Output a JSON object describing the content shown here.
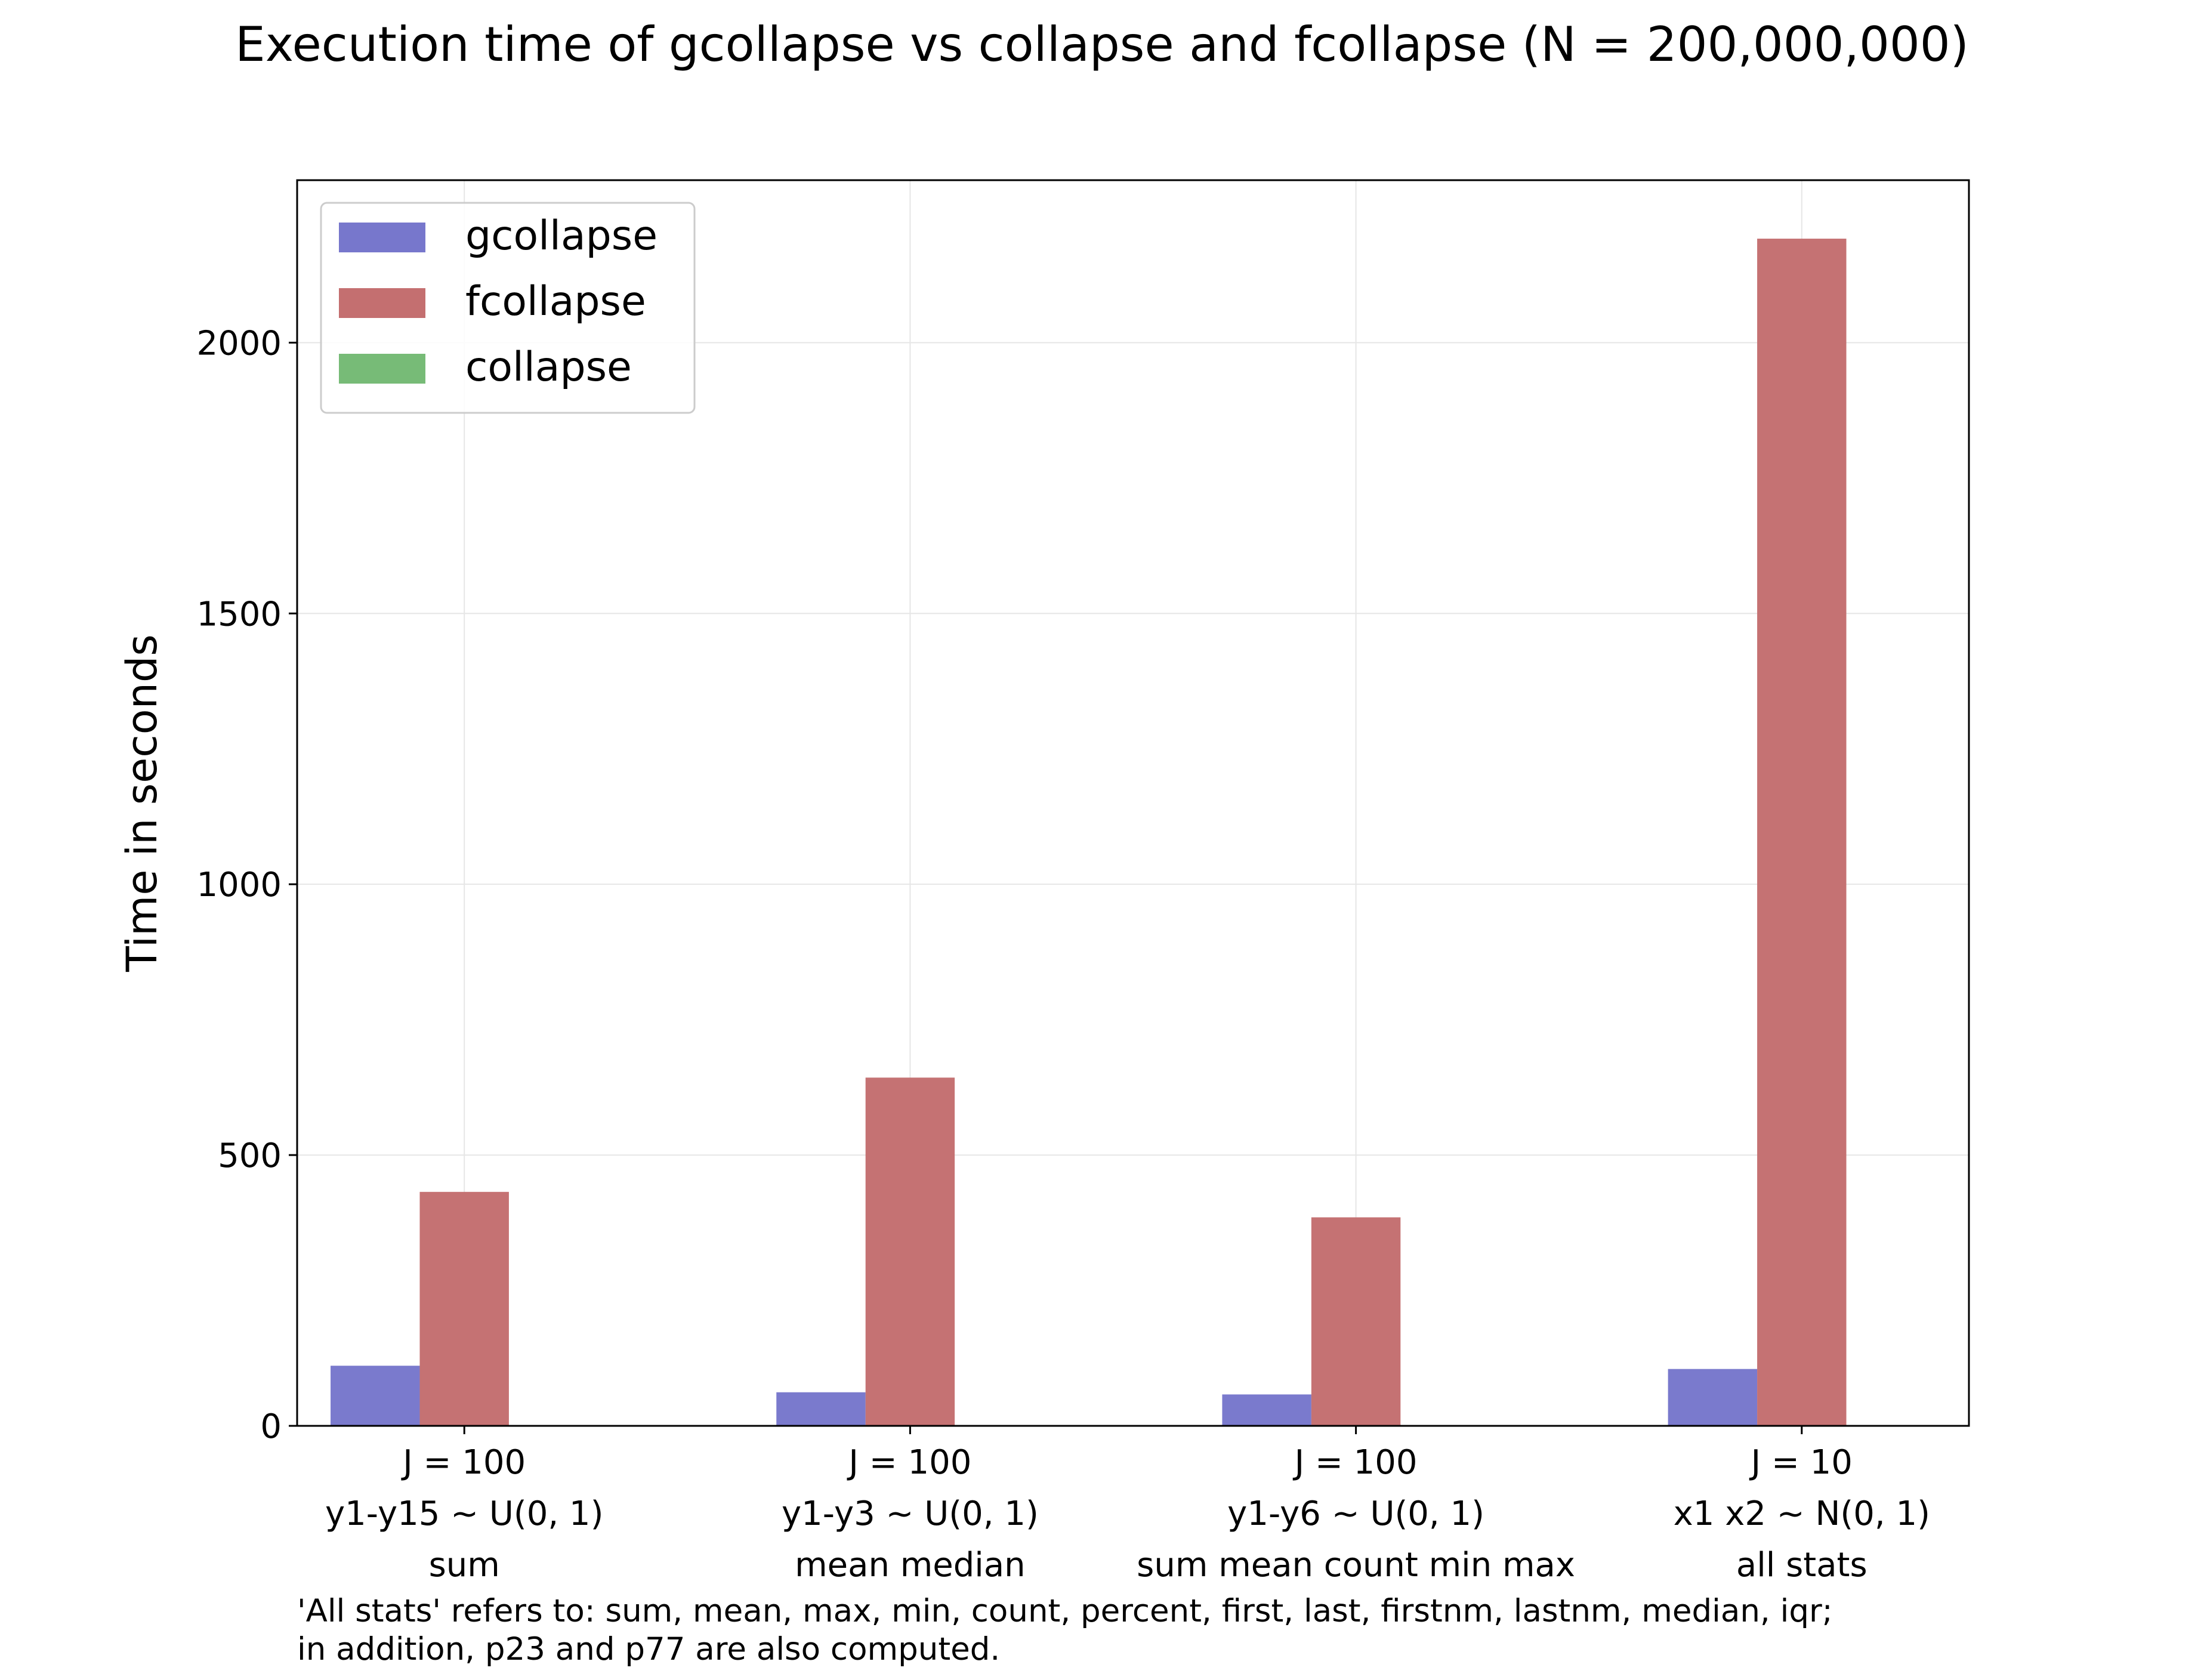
{
  "chart_data": {
    "type": "bar",
    "title": "Execution time of gcollapse vs collapse and fcollapse (N = 200,000,000)",
    "xlabel": "",
    "ylabel": "Time in seconds",
    "ylim": [
      0,
      2300
    ],
    "yticks": [
      0,
      500,
      1000,
      1500,
      2000
    ],
    "grid": true,
    "legend_position": "top-left",
    "categories": [
      [
        "J = 100",
        "y1-y15 ~ U(0, 1)",
        "sum"
      ],
      [
        "J = 100",
        "y1-y3 ~ U(0, 1)",
        "mean median"
      ],
      [
        "J = 100",
        "y1-y6 ~ U(0, 1)",
        "sum mean count min max"
      ],
      [
        "J = 10",
        "x1 x2 ~ N(0, 1)",
        "all stats"
      ]
    ],
    "series": [
      {
        "name": "gcollapse",
        "color": "#7777cc",
        "values": [
          111,
          62,
          58,
          105
        ]
      },
      {
        "name": "fcollapse",
        "color": "#c46f70",
        "values": [
          432,
          643,
          385,
          2192
        ]
      },
      {
        "name": "collapse",
        "color": "#77bb77",
        "values": [
          null,
          null,
          null,
          null
        ]
      }
    ],
    "footnote": [
      "'All stats' refers to: sum, mean, max, min, count, percent, first, last, firstnm, lastnm, median, iqr;",
      "in addition, p23 and p77 are also computed."
    ]
  }
}
